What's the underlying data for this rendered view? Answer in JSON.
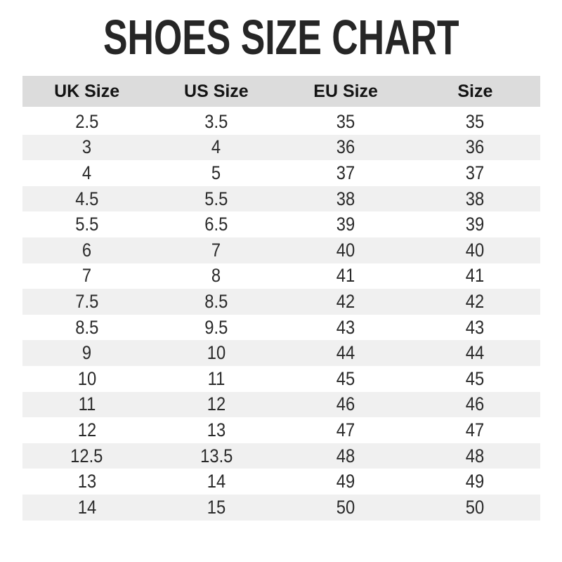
{
  "title": "SHOES SIZE CHART",
  "colors": {
    "background": "#ffffff",
    "header_bg": "#dcdcdc",
    "alt_row_bg": "#f0f0f0",
    "text": "#262626"
  },
  "chart_data": {
    "type": "table",
    "title": "SHOES SIZE CHART",
    "columns": [
      "UK Size",
      "US Size",
      "EU Size",
      "Size"
    ],
    "rows": [
      [
        "2.5",
        "3.5",
        "35",
        "35"
      ],
      [
        "3",
        "4",
        "36",
        "36"
      ],
      [
        "4",
        "5",
        "37",
        "37"
      ],
      [
        "4.5",
        "5.5",
        "38",
        "38"
      ],
      [
        "5.5",
        "6.5",
        "39",
        "39"
      ],
      [
        "6",
        "7",
        "40",
        "40"
      ],
      [
        "7",
        "8",
        "41",
        "41"
      ],
      [
        "7.5",
        "8.5",
        "42",
        "42"
      ],
      [
        "8.5",
        "9.5",
        "43",
        "43"
      ],
      [
        "9",
        "10",
        "44",
        "44"
      ],
      [
        "10",
        "11",
        "45",
        "45"
      ],
      [
        "11",
        "12",
        "46",
        "46"
      ],
      [
        "12",
        "13",
        "47",
        "47"
      ],
      [
        "12.5",
        "13.5",
        "48",
        "48"
      ],
      [
        "13",
        "14",
        "49",
        "49"
      ],
      [
        "14",
        "15",
        "50",
        "50"
      ]
    ],
    "layout": {
      "legend": "none",
      "grid": "alternating-row-stripes",
      "row_count": 16,
      "column_count": 4
    }
  }
}
